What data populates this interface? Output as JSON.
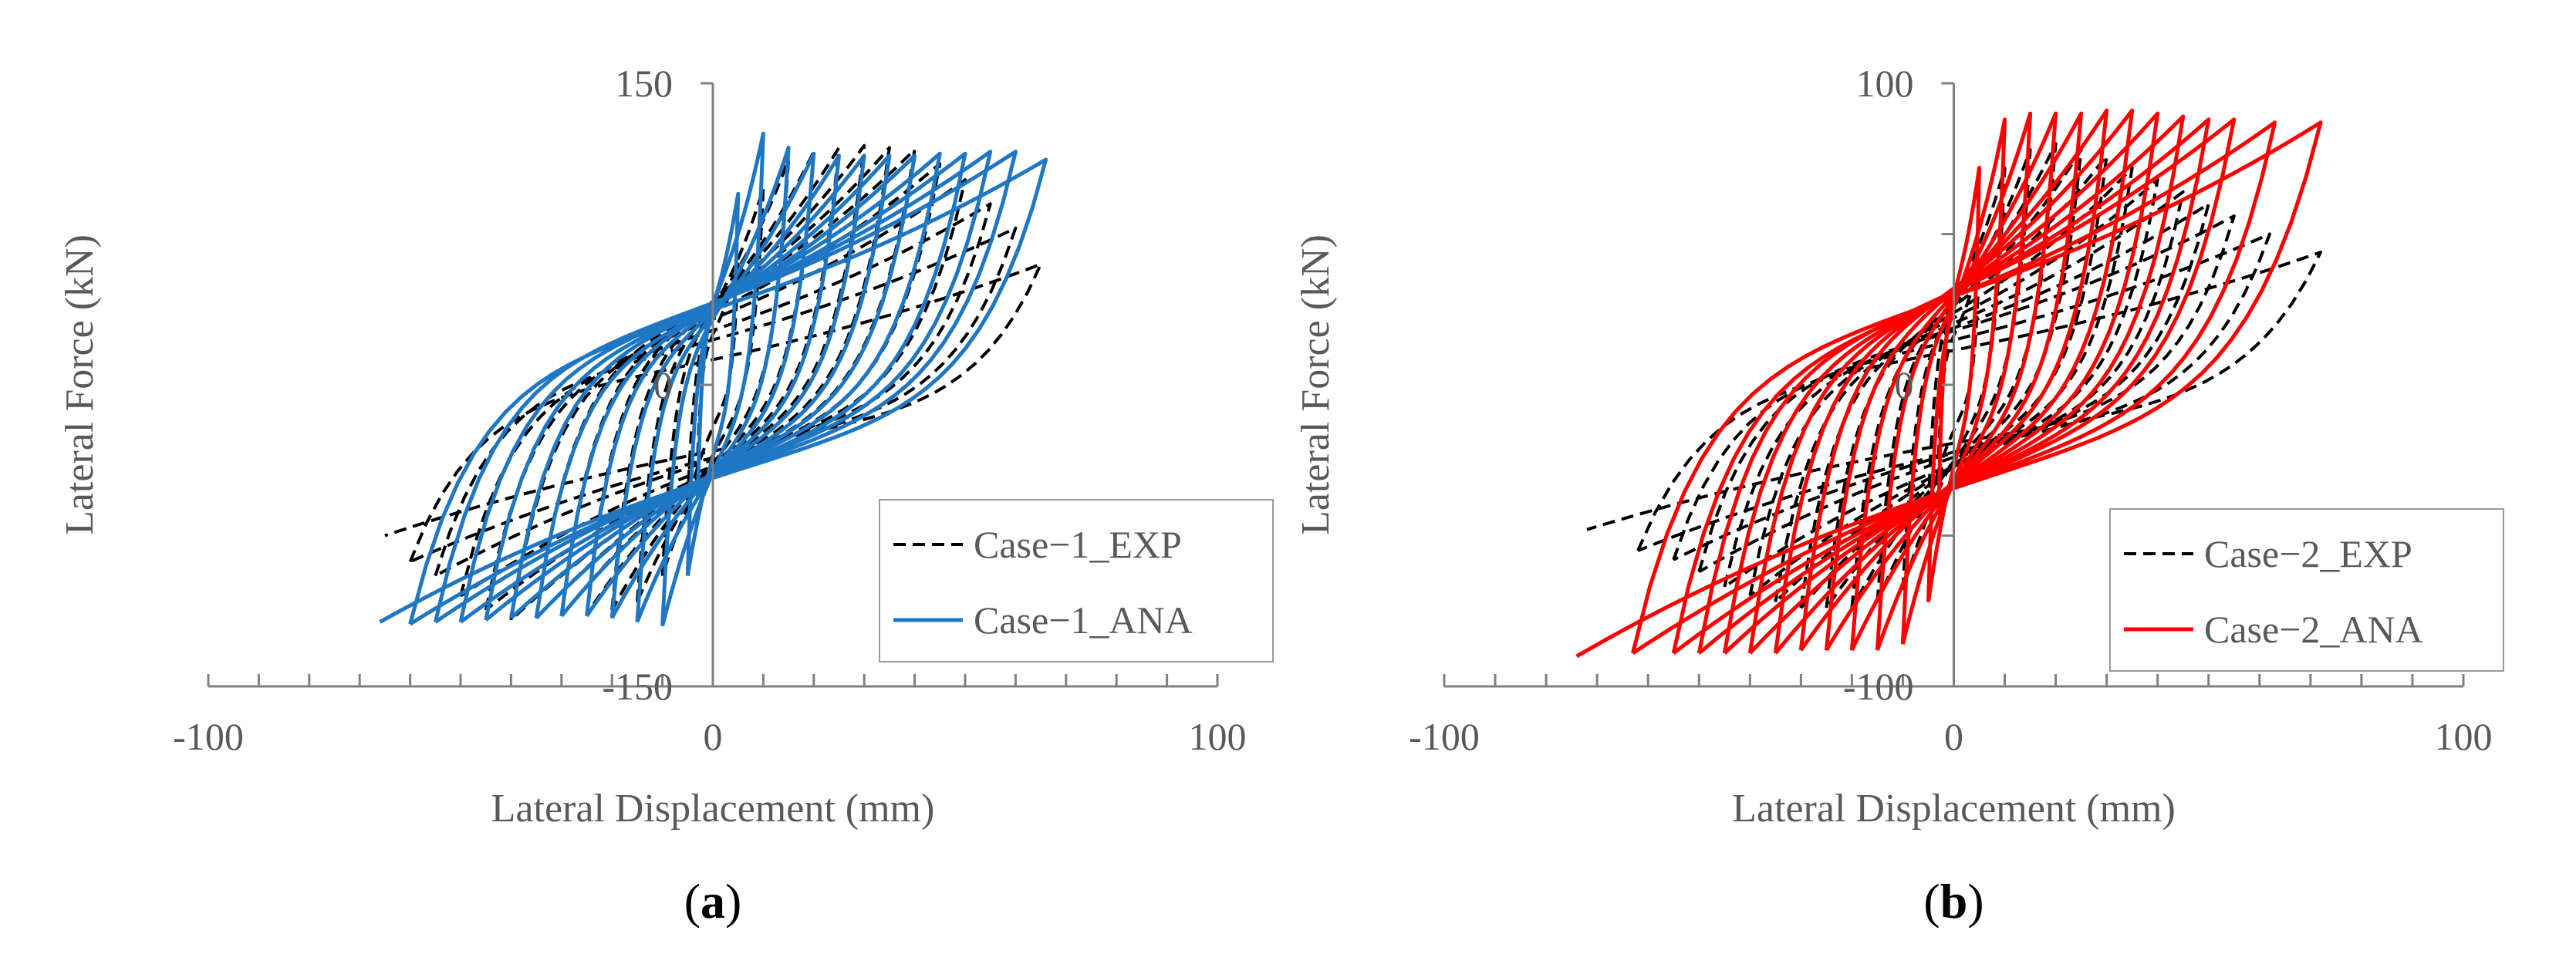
{
  "colors": {
    "axis": "#808080",
    "text": "#595959",
    "exp_line": "#000000",
    "ana_a": "#1f77c4",
    "ana_b": "#ff0000"
  },
  "chart_data": [
    {
      "panel_label": "a",
      "type": "line",
      "title": "",
      "xlabel": "Lateral Displacement (mm)",
      "ylabel": "Lateral Force (kN)",
      "xlim": [
        -100,
        100
      ],
      "ylim": [
        -150,
        150
      ],
      "xticks": [
        -100,
        0,
        100
      ],
      "xtick_labels": [
        "-100",
        "0",
        "100"
      ],
      "yticks": [
        -150,
        0,
        150
      ],
      "ytick_labels": [
        "-150",
        "0",
        "150"
      ],
      "x_minor_step": 10,
      "grid": false,
      "legend_position": "bottom-right",
      "series": [
        {
          "name": "Case−1_EXP",
          "style": "dashed",
          "color": "#000000",
          "loops": [
            {
              "dmax": 5,
              "fmax": 60,
              "dmin": -5,
              "fmin": -58
            },
            {
              "dmax": 10,
              "fmax": 98,
              "dmin": -10,
              "fmin": -95
            },
            {
              "dmax": 15,
              "fmax": 112,
              "dmin": -15,
              "fmin": -108
            },
            {
              "dmax": 20,
              "fmax": 116,
              "dmin": -20,
              "fmin": -112
            },
            {
              "dmax": 25,
              "fmax": 118,
              "dmin": -25,
              "fmin": -114
            },
            {
              "dmax": 30,
              "fmax": 119,
              "dmin": -30,
              "fmin": -115
            },
            {
              "dmax": 35,
              "fmax": 118,
              "dmin": -35,
              "fmin": -116
            },
            {
              "dmax": 40,
              "fmax": 117,
              "dmin": -40,
              "fmin": -117
            },
            {
              "dmax": 45,
              "fmax": 110,
              "dmin": -45,
              "fmin": -112
            },
            {
              "dmax": 50,
              "fmax": 102,
              "dmin": -50,
              "fmin": -105
            },
            {
              "dmax": 55,
              "fmax": 90,
              "dmin": -55,
              "fmin": -95
            },
            {
              "dmax": 60,
              "fmax": 78,
              "dmin": -60,
              "fmin": -88
            },
            {
              "dmax": 65,
              "fmax": 60,
              "dmin": -65,
              "fmin": -75
            }
          ]
        },
        {
          "name": "Case−1_ANA",
          "style": "solid",
          "color": "#1f77c4",
          "loops": [
            {
              "dmax": 5,
              "fmax": 95,
              "dmin": -5,
              "fmin": -95
            },
            {
              "dmax": 10,
              "fmax": 125,
              "dmin": -10,
              "fmin": -120
            },
            {
              "dmax": 15,
              "fmax": 118,
              "dmin": -15,
              "fmin": -118
            },
            {
              "dmax": 20,
              "fmax": 115,
              "dmin": -20,
              "fmin": -116
            },
            {
              "dmax": 25,
              "fmax": 114,
              "dmin": -25,
              "fmin": -115
            },
            {
              "dmax": 30,
              "fmax": 114,
              "dmin": -30,
              "fmin": -115
            },
            {
              "dmax": 35,
              "fmax": 114,
              "dmin": -35,
              "fmin": -116
            },
            {
              "dmax": 40,
              "fmax": 114,
              "dmin": -40,
              "fmin": -116
            },
            {
              "dmax": 45,
              "fmax": 115,
              "dmin": -45,
              "fmin": -117
            },
            {
              "dmax": 50,
              "fmax": 115,
              "dmin": -50,
              "fmin": -118
            },
            {
              "dmax": 55,
              "fmax": 116,
              "dmin": -55,
              "fmin": -118
            },
            {
              "dmax": 60,
              "fmax": 116,
              "dmin": -60,
              "fmin": -119
            },
            {
              "dmax": 66,
              "fmax": 112,
              "dmin": -66,
              "fmin": -118
            }
          ]
        }
      ]
    },
    {
      "panel_label": "b",
      "type": "line",
      "title": "",
      "xlabel": "Lateral Displacement (mm)",
      "ylabel": "Lateral Force (kN)",
      "xlim": [
        -100,
        100
      ],
      "ylim": [
        -100,
        100
      ],
      "xticks": [
        -100,
        0,
        100
      ],
      "xtick_labels": [
        "-100",
        "0",
        "100"
      ],
      "yticks": [
        -100,
        -50,
        0,
        50,
        100
      ],
      "ytick_labels": [
        "-100",
        "",
        "0",
        "",
        "100"
      ],
      "x_minor_step": 10,
      "grid": false,
      "legend_position": "bottom-right",
      "series": [
        {
          "name": "Case−2_EXP",
          "style": "dashed",
          "color": "#000000",
          "loops": [
            {
              "dmax": 5,
              "fmax": 40,
              "dmin": -5,
              "fmin": -40
            },
            {
              "dmax": 10,
              "fmax": 72,
              "dmin": -10,
              "fmin": -68
            },
            {
              "dmax": 15,
              "fmax": 78,
              "dmin": -15,
              "fmin": -72
            },
            {
              "dmax": 20,
              "fmax": 80,
              "dmin": -20,
              "fmin": -74
            },
            {
              "dmax": 25,
              "fmax": 78,
              "dmin": -25,
              "fmin": -74
            },
            {
              "dmax": 30,
              "fmax": 76,
              "dmin": -30,
              "fmin": -74
            },
            {
              "dmax": 35,
              "fmax": 72,
              "dmin": -35,
              "fmin": -72
            },
            {
              "dmax": 40,
              "fmax": 68,
              "dmin": -40,
              "fmin": -70
            },
            {
              "dmax": 45,
              "fmax": 64,
              "dmin": -45,
              "fmin": -67
            },
            {
              "dmax": 50,
              "fmax": 60,
              "dmin": -50,
              "fmin": -62
            },
            {
              "dmax": 55,
              "fmax": 56,
              "dmin": -55,
              "fmin": -58
            },
            {
              "dmax": 62,
              "fmax": 50,
              "dmin": -62,
              "fmin": -55
            },
            {
              "dmax": 72,
              "fmax": 44,
              "dmin": -72,
              "fmin": -48
            }
          ]
        },
        {
          "name": "Case−2_ANA",
          "style": "solid",
          "color": "#ff0000",
          "loops": [
            {
              "dmax": 5,
              "fmax": 72,
              "dmin": -5,
              "fmin": -72
            },
            {
              "dmax": 10,
              "fmax": 88,
              "dmin": -10,
              "fmin": -86
            },
            {
              "dmax": 15,
              "fmax": 90,
              "dmin": -15,
              "fmin": -88
            },
            {
              "dmax": 20,
              "fmax": 90,
              "dmin": -20,
              "fmin": -88
            },
            {
              "dmax": 25,
              "fmax": 90,
              "dmin": -25,
              "fmin": -88
            },
            {
              "dmax": 30,
              "fmax": 91,
              "dmin": -30,
              "fmin": -88
            },
            {
              "dmax": 35,
              "fmax": 91,
              "dmin": -35,
              "fmin": -89
            },
            {
              "dmax": 40,
              "fmax": 90,
              "dmin": -40,
              "fmin": -89
            },
            {
              "dmax": 45,
              "fmax": 89,
              "dmin": -45,
              "fmin": -89
            },
            {
              "dmax": 50,
              "fmax": 88,
              "dmin": -50,
              "fmin": -89
            },
            {
              "dmax": 55,
              "fmax": 88,
              "dmin": -55,
              "fmin": -89
            },
            {
              "dmax": 63,
              "fmax": 87,
              "dmin": -63,
              "fmin": -89
            },
            {
              "dmax": 72,
              "fmax": 87,
              "dmin": -74,
              "fmin": -90
            }
          ]
        }
      ]
    }
  ]
}
